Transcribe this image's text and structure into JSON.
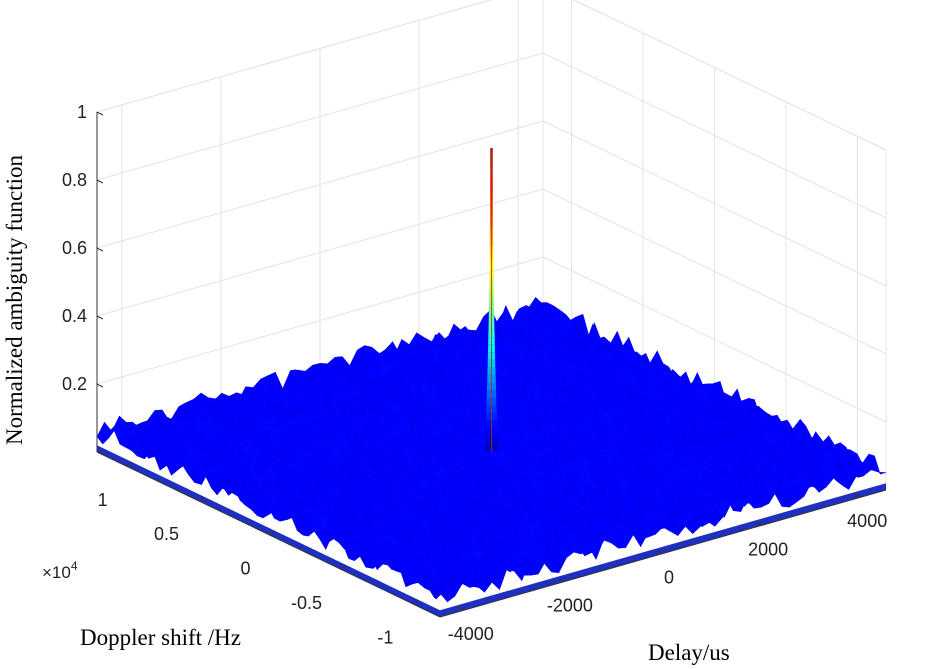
{
  "chart_data": {
    "type": "surface3d",
    "title": "",
    "xlabel": "Delay/us",
    "ylabel": "Doppler shift /Hz",
    "zlabel": "Normalized ambiguity function",
    "x_ticks": [
      "-4000",
      "-2000",
      "0",
      "2000",
      "4000"
    ],
    "x_tick_values": [
      -4000,
      -2000,
      0,
      2000,
      4000
    ],
    "y_ticks": [
      "-1",
      "-0.5",
      "0",
      "0.5",
      "1"
    ],
    "y_tick_values": [
      -1,
      -0.5,
      0,
      0.5,
      1
    ],
    "y_multiplier_base": "×10",
    "y_multiplier_exp": "4",
    "z_ticks": [
      "0.2",
      "0.4",
      "0.6",
      "0.8",
      "1"
    ],
    "z_tick_values": [
      0.2,
      0.4,
      0.6,
      0.8,
      1
    ],
    "xlim": [
      -4500,
      4500
    ],
    "ylim": [
      -12000,
      12000
    ],
    "zlim": [
      0,
      1
    ],
    "colormap": "jet",
    "grid": true,
    "peak": {
      "x": 0,
      "y": 0,
      "z": 0.95
    },
    "sidelobe_floor": 0.06,
    "sidelobe_range": [
      0.03,
      0.09
    ]
  }
}
